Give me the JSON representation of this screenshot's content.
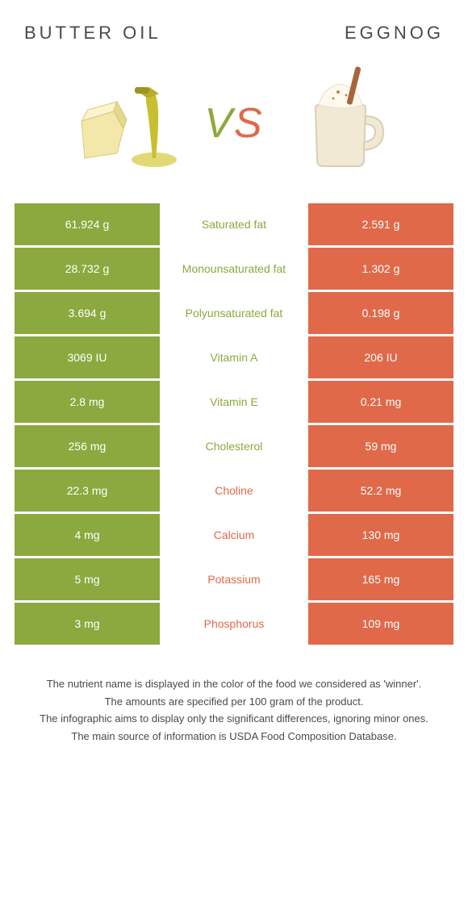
{
  "header": {
    "left_title": "Butter oil",
    "right_title": "Eggnog",
    "vs": {
      "v": "V",
      "s": "S"
    }
  },
  "colors": {
    "green": "#8ba93e",
    "orange": "#e0694a",
    "text": "#4a4a4a",
    "white": "#ffffff"
  },
  "rows": [
    {
      "left": "61.924 g",
      "label": "Saturated fat",
      "right": "2.591 g",
      "winner": "green"
    },
    {
      "left": "28.732 g",
      "label": "Monounsaturated fat",
      "right": "1.302 g",
      "winner": "green"
    },
    {
      "left": "3.694 g",
      "label": "Polyunsaturated fat",
      "right": "0.198 g",
      "winner": "green"
    },
    {
      "left": "3069 IU",
      "label": "Vitamin A",
      "right": "206 IU",
      "winner": "green"
    },
    {
      "left": "2.8 mg",
      "label": "Vitamin E",
      "right": "0.21 mg",
      "winner": "green"
    },
    {
      "left": "256 mg",
      "label": "Cholesterol",
      "right": "59 mg",
      "winner": "green"
    },
    {
      "left": "22.3 mg",
      "label": "Choline",
      "right": "52.2 mg",
      "winner": "orange"
    },
    {
      "left": "4 mg",
      "label": "Calcium",
      "right": "130 mg",
      "winner": "orange"
    },
    {
      "left": "5 mg",
      "label": "Potassium",
      "right": "165 mg",
      "winner": "orange"
    },
    {
      "left": "3 mg",
      "label": "Phosphorus",
      "right": "109 mg",
      "winner": "orange"
    }
  ],
  "footnotes": [
    "The nutrient name is displayed in the color of the food we considered as 'winner'.",
    "The amounts are specified per 100 gram of the product.",
    "The infographic aims to display only the significant differences, ignoring minor ones.",
    "The main source of information is USDA Food Composition Database."
  ]
}
